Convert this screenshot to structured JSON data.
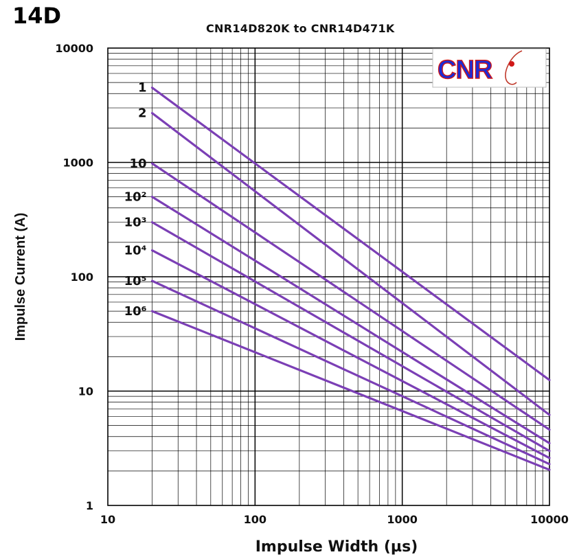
{
  "series_tag": "14D",
  "chart_data": {
    "type": "line",
    "title": "CNR14D820K to CNR14D471K",
    "xlabel": "Impulse Width (µs)",
    "ylabel": "Impulse Current (A)",
    "x_scale": "log",
    "y_scale": "log",
    "xlim": [
      10,
      10000
    ],
    "ylim": [
      1,
      10000
    ],
    "x_ticks": [
      "10",
      "100",
      "1000",
      "10000"
    ],
    "y_ticks": [
      "1",
      "10",
      "100",
      "1000",
      "10000"
    ],
    "grid": true,
    "logo": {
      "text": "CNR",
      "colors": {
        "fill": "#1a2bd6",
        "outline": "#d01818",
        "accent": "#c0392b"
      }
    },
    "line_color": "#7b3fb5",
    "series": [
      {
        "name": "1",
        "x": [
          20,
          10000
        ],
        "y": [
          4500,
          12.5
        ]
      },
      {
        "name": "2",
        "x": [
          20,
          10000
        ],
        "y": [
          2700,
          6.2
        ]
      },
      {
        "name": "10",
        "x": [
          20,
          10000
        ],
        "y": [
          980,
          4.6
        ]
      },
      {
        "name": "10²",
        "x": [
          20,
          10000
        ],
        "y": [
          500,
          3.5
        ]
      },
      {
        "name": "10³",
        "x": [
          20,
          10000
        ],
        "y": [
          300,
          3.0
        ]
      },
      {
        "name": "10⁴",
        "x": [
          20,
          10000
        ],
        "y": [
          170,
          2.6
        ]
      },
      {
        "name": "10⁵",
        "x": [
          20,
          10000
        ],
        "y": [
          92,
          2.3
        ]
      },
      {
        "name": "10⁶",
        "x": [
          20,
          10000
        ],
        "y": [
          50,
          2.05
        ]
      }
    ]
  }
}
